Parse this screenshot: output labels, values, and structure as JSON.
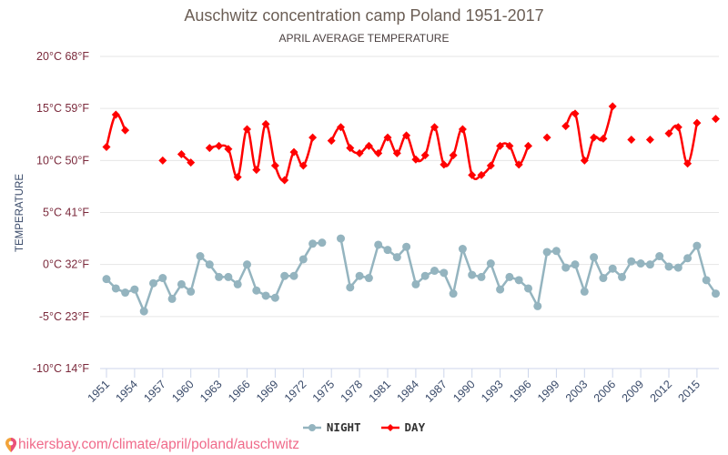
{
  "chart_data": {
    "type": "line",
    "title": "Auschwitz concentration camp Poland 1951-2017",
    "subtitle": "APRIL AVERAGE TEMPERATURE",
    "xlabel": "",
    "ylabel": "TEMPERATURE",
    "ylim": [
      -10,
      20
    ],
    "grid": true,
    "legend_position": "bottom-center",
    "y_ticks": [
      {
        "value": 20,
        "label": "20°C 68°F"
      },
      {
        "value": 15,
        "label": "15°C 59°F"
      },
      {
        "value": 10,
        "label": "10°C 50°F"
      },
      {
        "value": 5,
        "label": "5°C 41°F"
      },
      {
        "value": 0,
        "label": "0°C 32°F"
      },
      {
        "value": -5,
        "label": "-5°C 23°F"
      },
      {
        "value": -10,
        "label": "-10°C 14°F"
      }
    ],
    "categories": [
      "1951",
      "1952",
      "1953",
      "1954",
      "1955",
      "1956",
      "1957",
      "1958",
      "1959",
      "1960",
      "1961",
      "1962",
      "1963",
      "1964",
      "1965",
      "1966",
      "1967",
      "1968",
      "1969",
      "1970",
      "1971",
      "1972",
      "1973",
      "1974",
      "1975",
      "1976",
      "1977",
      "1978",
      "1979",
      "1980",
      "1981",
      "1982",
      "1983",
      "1984",
      "1985",
      "1986",
      "1987",
      "1988",
      "1989",
      "1990",
      "1991",
      "1992",
      "1993",
      "1994",
      "1995",
      "1996",
      "1997",
      "1998",
      "1999",
      "2001",
      "2002",
      "2003",
      "2004",
      "2005",
      "2006",
      "2007",
      "2008",
      "2009",
      "2010",
      "2011",
      "2012",
      "2013",
      "2014",
      "2015",
      "2016",
      "2017"
    ],
    "x_tick_labels": [
      "1951",
      "1954",
      "1957",
      "1960",
      "1963",
      "1966",
      "1969",
      "1972",
      "1975",
      "1978",
      "1981",
      "1984",
      "1987",
      "1990",
      "1993",
      "1996",
      "1999",
      "2003",
      "2006",
      "2009",
      "2012",
      "2015"
    ],
    "series": [
      {
        "name": "NIGHT",
        "color": "#94b4bf",
        "marker": "circle",
        "values": [
          -1.4,
          -2.3,
          -2.7,
          -2.4,
          -4.5,
          -1.8,
          -1.3,
          -3.3,
          -1.9,
          -2.6,
          0.8,
          0.0,
          -1.2,
          -1.2,
          -1.9,
          0.0,
          -2.5,
          -3.0,
          -3.2,
          -1.1,
          -1.1,
          0.5,
          2.0,
          2.1,
          null,
          2.5,
          -2.2,
          -1.1,
          -1.3,
          1.9,
          1.4,
          0.7,
          1.7,
          -1.9,
          -1.1,
          -0.6,
          -0.8,
          -2.8,
          1.5,
          -1.0,
          -1.2,
          0.1,
          -2.4,
          -1.2,
          -1.5,
          -2.3,
          -4.0,
          1.2,
          1.3,
          -0.3,
          0.0,
          -2.6,
          0.7,
          -1.3,
          -0.4,
          -1.2,
          0.3,
          0.1,
          0.0,
          0.8,
          -0.2,
          -0.3,
          0.6,
          1.8,
          -1.5,
          -2.8
        ]
      },
      {
        "name": "DAY",
        "color": "#ff0000",
        "marker": "diamond",
        "values": [
          11.3,
          14.4,
          12.9,
          null,
          null,
          null,
          10.0,
          null,
          10.6,
          9.8,
          null,
          11.2,
          11.4,
          11.1,
          8.4,
          13.0,
          9.1,
          13.5,
          9.5,
          8.1,
          10.8,
          9.5,
          12.2,
          null,
          11.9,
          13.2,
          11.2,
          10.7,
          11.4,
          10.7,
          12.2,
          10.7,
          12.4,
          10.1,
          10.5,
          13.2,
          9.6,
          10.5,
          13.0,
          8.6,
          8.6,
          9.5,
          11.4,
          11.4,
          9.6,
          11.4,
          null,
          12.2,
          null,
          13.3,
          14.5,
          10.0,
          12.2,
          12.1,
          15.2,
          null,
          12.0,
          null,
          12.0,
          null,
          12.6,
          13.2,
          9.7,
          13.6,
          null,
          14.0
        ]
      }
    ]
  },
  "legend": {
    "night_label": "NIGHT",
    "day_label": "DAY"
  },
  "footer": {
    "icon": "map-pin-icon",
    "url_text": "hikersbay.com/climate/april/poland/auschwitz"
  }
}
